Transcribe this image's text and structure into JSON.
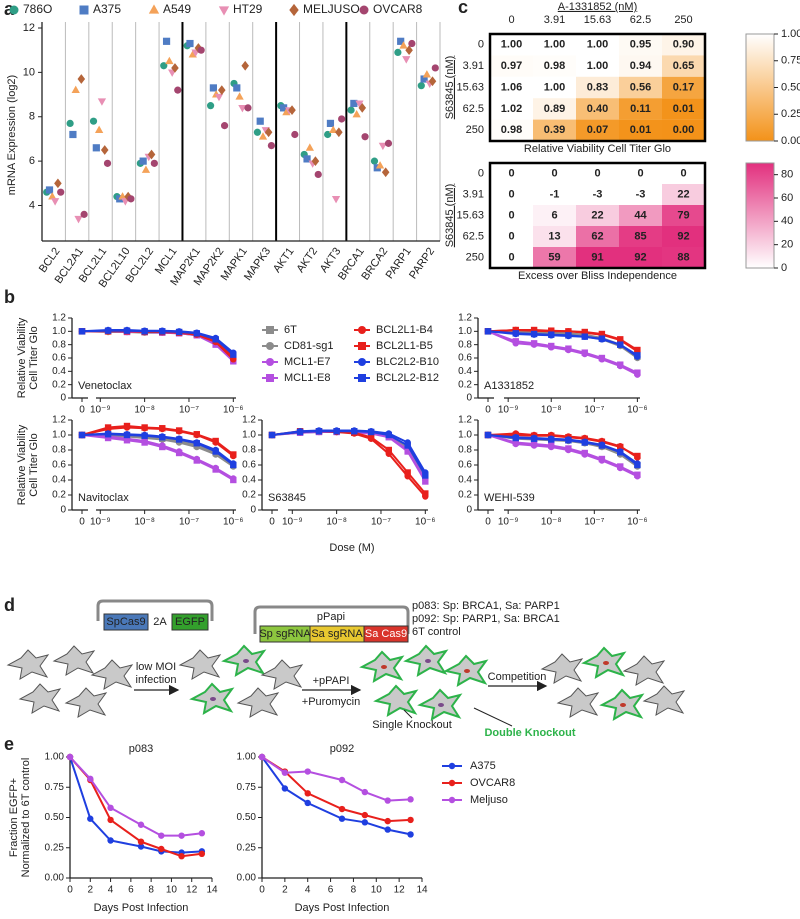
{
  "panel_labels": [
    "a",
    "b",
    "c",
    "d",
    "e"
  ],
  "chart_data": [
    {
      "type": "strip",
      "ylabel": "mRNA Expression (log2)",
      "categories": [
        "BCL2",
        "BCL2A1",
        "BCL2L1",
        "BCL2L10",
        "BCL2L2",
        "MCL1",
        "MAP2K1",
        "MAP2K2",
        "MAPK1",
        "MAPK3",
        "AKT1",
        "AKT2",
        "AKT3",
        "BRCA1",
        "BRCA2",
        "PARP1",
        "PARP2"
      ],
      "groups": [
        6,
        4,
        3,
        4
      ],
      "ylim": [
        2.4,
        12
      ],
      "yticks": [
        4,
        6,
        8,
        10,
        12
      ],
      "series": [
        {
          "name": "786O",
          "color": "#2f9e86",
          "marker": "circle",
          "values": [
            4.6,
            7.7,
            7.8,
            4.4,
            5.9,
            10.3,
            11.2,
            8.5,
            9.5,
            7.3,
            8.5,
            6.3,
            7.2,
            8.3,
            6.0,
            10.9,
            9.4
          ]
        },
        {
          "name": "A375",
          "color": "#4f7cc4",
          "marker": "square",
          "values": [
            4.7,
            7.2,
            6.6,
            4.3,
            6.0,
            11.4,
            11.3,
            9.3,
            9.3,
            7.8,
            8.4,
            6.1,
            7.7,
            8.6,
            5.7,
            11.4,
            9.7
          ]
        },
        {
          "name": "A549",
          "color": "#f4a259",
          "marker": "triangle",
          "values": [
            4.4,
            9.2,
            7.4,
            4.4,
            5.6,
            10.5,
            10.8,
            9.0,
            8.9,
            7.1,
            8.2,
            6.6,
            7.4,
            8.1,
            5.8,
            11.2,
            9.9
          ]
        },
        {
          "name": "HT29",
          "color": "#e88fb4",
          "marker": "triangle-down",
          "values": [
            4.2,
            3.4,
            8.7,
            4.2,
            6.2,
            10.0,
            10.9,
            8.9,
            8.4,
            7.4,
            8.3,
            5.9,
            4.3,
            8.6,
            6.7,
            10.6,
            9.5
          ]
        },
        {
          "name": "MELJUSO",
          "color": "#b5653a",
          "marker": "diamond",
          "values": [
            5.0,
            9.7,
            6.5,
            4.4,
            6.3,
            10.2,
            11.1,
            9.2,
            10.3,
            7.3,
            8.3,
            6.0,
            7.3,
            8.4,
            5.5,
            11.0,
            9.6
          ]
        },
        {
          "name": "OVCAR8",
          "color": "#a4456f",
          "marker": "circle",
          "values": [
            4.6,
            3.6,
            5.9,
            4.3,
            5.9,
            9.2,
            11.0,
            7.6,
            8.4,
            6.7,
            7.2,
            5.4,
            7.9,
            7.1,
            6.8,
            11.3,
            10.2
          ]
        }
      ]
    },
    {
      "type": "heatmap",
      "title": "A-1331852 (nM)",
      "ylabel": "S63845 (nM)",
      "caption": "Relative Viability Cell Titer Glo",
      "x": [
        0,
        3.91,
        15.63,
        62.5,
        250
      ],
      "y": [
        0,
        3.91,
        15.63,
        62.5,
        250
      ],
      "values": [
        [
          1,
          1,
          1,
          0.95,
          0.9
        ],
        [
          0.97,
          0.98,
          1,
          0.94,
          0.65
        ],
        [
          1.06,
          1,
          0.83,
          0.56,
          0.17
        ],
        [
          1.02,
          0.89,
          0.4,
          0.11,
          0.01
        ],
        [
          0.98,
          0.39,
          0.07,
          0.01,
          0
        ]
      ],
      "value_labels": [
        [
          "1.00",
          "1.00",
          "1.00",
          "0.95",
          "0.90"
        ],
        [
          "0.97",
          "0.98",
          "1.00",
          "0.94",
          "0.65"
        ],
        [
          "1.06",
          "1.00",
          "0.83",
          "0.56",
          "0.17"
        ],
        [
          "1.02",
          "0.89",
          "0.40",
          "0.11",
          "0.01"
        ],
        [
          "0.98",
          "0.39",
          "0.07",
          "0.01",
          "0.00"
        ]
      ],
      "colors": [
        "#f39219",
        "#ffffff"
      ],
      "zlim": [
        0,
        1
      ],
      "zticks": [
        {
          "value": 0,
          "label": "0.00"
        },
        {
          "value": 0.25,
          "label": "0.25"
        },
        {
          "value": 0.5,
          "label": "0.50"
        },
        {
          "value": 0.75,
          "label": "0.75"
        },
        {
          "value": 1,
          "label": "1.00"
        }
      ]
    },
    {
      "type": "heatmap",
      "ylabel": "S63845 (nM)",
      "caption": "Excess over Bliss Independence",
      "y": [
        0,
        3.91,
        15.63,
        62.5,
        250
      ],
      "values": [
        [
          0,
          0,
          0,
          0,
          0
        ],
        [
          0,
          -1,
          -3,
          -3,
          22
        ],
        [
          0,
          6,
          22,
          44,
          79
        ],
        [
          0,
          13,
          62,
          85,
          92
        ],
        [
          0,
          59,
          91,
          92,
          88
        ]
      ],
      "colors": [
        "#ffffff",
        "#e2307e"
      ],
      "zlim": [
        0,
        90
      ],
      "zticks": [
        0,
        20,
        40,
        60,
        80
      ]
    },
    {
      "type": "dose-response",
      "ylabel": [
        "Relative Viability",
        "Cell Titer Glo"
      ],
      "xlabel": "Dose (M)",
      "log_x": true,
      "x": [
        0,
        1.5e-09,
        4e-09,
        1e-08,
        2.5e-08,
        6e-08,
        1.5e-07,
        4e-07,
        1e-06
      ],
      "xlim": [
        8e-10,
        1.15e-06
      ],
      "xticks": [
        0,
        {
          "value": 1e-09,
          "label": "10⁻⁹"
        },
        {
          "value": 1e-08,
          "label": "10⁻⁸"
        },
        {
          "value": 1e-07,
          "label": "10⁻⁷"
        },
        {
          "value": 1e-06,
          "label": "10⁻⁶"
        }
      ],
      "ylim": [
        0,
        1.2
      ],
      "yticks": [
        0,
        0.2,
        0.4,
        0.6,
        0.8,
        {
          "value": 1,
          "label": "1.0"
        },
        1.2
      ],
      "series": [
        {
          "name": "6T",
          "color": "#8c8c8c",
          "marker": "square"
        },
        {
          "name": "CD81-sg1",
          "color": "#8c8c8c",
          "marker": "circle"
        },
        {
          "name": "MCL1-E7",
          "color": "#b44fe0",
          "marker": "circle"
        },
        {
          "name": "MCL1-E8",
          "color": "#b44fe0",
          "marker": "square"
        },
        {
          "name": "BCL2L1-B4",
          "color": "#e8201c",
          "marker": "circle"
        },
        {
          "name": "BCL2L1-B5",
          "color": "#e8201c",
          "marker": "square"
        },
        {
          "name": "BLC2L2-B10",
          "color": "#1f3fe0",
          "marker": "circle"
        },
        {
          "name": "BCL2L2-B12",
          "color": "#1f3fe0",
          "marker": "square"
        }
      ],
      "panels": [
        {
          "title": "Venetoclax",
          "values": [
            [
              1,
              1,
              1,
              0.99,
              0.99,
              0.98,
              0.95,
              0.85,
              0.62
            ],
            [
              1,
              0.99,
              0.99,
              0.98,
              0.98,
              0.97,
              0.94,
              0.83,
              0.6
            ],
            [
              1,
              1,
              1,
              1,
              0.99,
              0.98,
              0.95,
              0.82,
              0.56
            ],
            [
              1,
              1,
              0.99,
              0.99,
              0.98,
              0.97,
              0.94,
              0.8,
              0.55
            ],
            [
              1,
              1.01,
              1,
              1,
              0.99,
              0.98,
              0.95,
              0.84,
              0.58
            ],
            [
              1,
              1,
              1,
              0.99,
              0.99,
              0.98,
              0.96,
              0.86,
              0.62
            ],
            [
              1,
              1.02,
              1.02,
              1.01,
              1.01,
              1,
              0.98,
              0.9,
              0.68
            ],
            [
              1,
              1.01,
              1.01,
              1,
              1,
              0.99,
              0.97,
              0.88,
              0.65
            ]
          ]
        },
        {
          "title": "A1331852",
          "values": [
            [
              1,
              1,
              0.99,
              0.98,
              0.97,
              0.95,
              0.9,
              0.8,
              0.62
            ],
            [
              1,
              0.98,
              0.97,
              0.96,
              0.95,
              0.93,
              0.88,
              0.78,
              0.6
            ],
            [
              1,
              0.82,
              0.8,
              0.76,
              0.72,
              0.66,
              0.58,
              0.48,
              0.35
            ],
            [
              1,
              0.85,
              0.82,
              0.78,
              0.74,
              0.68,
              0.6,
              0.5,
              0.38
            ],
            [
              1,
              1.02,
              1.01,
              1,
              1,
              0.98,
              0.95,
              0.87,
              0.7
            ],
            [
              1,
              1.02,
              1.02,
              1.01,
              1,
              0.99,
              0.96,
              0.88,
              0.72
            ],
            [
              1,
              0.96,
              0.95,
              0.94,
              0.93,
              0.92,
              0.88,
              0.8,
              0.62
            ],
            [
              1,
              0.97,
              0.96,
              0.95,
              0.94,
              0.92,
              0.89,
              0.8,
              0.64
            ]
          ]
        },
        {
          "title": "Navitoclax",
          "values": [
            [
              1,
              1,
              0.99,
              0.97,
              0.95,
              0.92,
              0.86,
              0.76,
              0.6
            ],
            [
              1,
              0.99,
              0.98,
              0.96,
              0.94,
              0.9,
              0.84,
              0.74,
              0.58
            ],
            [
              1,
              0.98,
              0.95,
              0.92,
              0.86,
              0.78,
              0.68,
              0.56,
              0.42
            ],
            [
              1,
              0.96,
              0.93,
              0.9,
              0.84,
              0.76,
              0.66,
              0.54,
              0.4
            ],
            [
              1,
              1.08,
              1.1,
              1.09,
              1.08,
              1.05,
              1,
              0.9,
              0.72
            ],
            [
              1,
              1.1,
              1.12,
              1.1,
              1.09,
              1.06,
              1.01,
              0.92,
              0.74
            ],
            [
              1,
              1.02,
              1.01,
              1,
              0.98,
              0.95,
              0.9,
              0.8,
              0.62
            ],
            [
              1,
              1.01,
              1,
              0.99,
              0.97,
              0.94,
              0.89,
              0.78,
              0.6
            ]
          ]
        },
        {
          "title": "S63845",
          "values": [
            [
              1,
              1.04,
              1.05,
              1.05,
              1.05,
              1.04,
              1,
              0.85,
              0.45
            ],
            [
              1,
              1.03,
              1.04,
              1.04,
              1.04,
              1.03,
              0.98,
              0.82,
              0.42
            ],
            [
              1,
              1.04,
              1.05,
              1.05,
              1.04,
              1.03,
              0.98,
              0.8,
              0.4
            ],
            [
              1,
              1.03,
              1.04,
              1.04,
              1.03,
              1.02,
              0.97,
              0.78,
              0.38
            ],
            [
              1,
              1.04,
              1.05,
              1.04,
              1.02,
              0.95,
              0.75,
              0.45,
              0.18
            ],
            [
              1,
              1.05,
              1.05,
              1.05,
              1.03,
              0.97,
              0.8,
              0.5,
              0.22
            ],
            [
              1,
              1.05,
              1.06,
              1.06,
              1.06,
              1.05,
              1.02,
              0.9,
              0.5
            ],
            [
              1,
              1.04,
              1.05,
              1.05,
              1.05,
              1.04,
              1,
              0.86,
              0.46
            ]
          ]
        },
        {
          "title": "WEHI-539",
          "values": [
            [
              1,
              0.96,
              0.95,
              0.94,
              0.93,
              0.9,
              0.85,
              0.76,
              0.6
            ],
            [
              1,
              0.95,
              0.94,
              0.93,
              0.92,
              0.89,
              0.84,
              0.74,
              0.58
            ],
            [
              1,
              0.88,
              0.86,
              0.84,
              0.8,
              0.74,
              0.66,
              0.56,
              0.45
            ],
            [
              1,
              0.9,
              0.88,
              0.86,
              0.82,
              0.76,
              0.68,
              0.58,
              0.47
            ],
            [
              1,
              1.02,
              1,
              1,
              0.98,
              0.96,
              0.92,
              0.85,
              0.7
            ],
            [
              1,
              1,
              0.99,
              0.99,
              0.97,
              0.95,
              0.91,
              0.84,
              0.72
            ],
            [
              1,
              0.97,
              0.96,
              0.95,
              0.94,
              0.91,
              0.87,
              0.78,
              0.62
            ],
            [
              1,
              0.96,
              0.95,
              0.94,
              0.93,
              0.9,
              0.86,
              0.77,
              0.6
            ]
          ]
        }
      ]
    },
    {
      "type": "line",
      "ylabel": [
        "Fraction EGFP+",
        "Normalized to 6T control"
      ],
      "xlabel": "Days Post Infection",
      "x": [
        0,
        2,
        4,
        7,
        9,
        11,
        13
      ],
      "xlim": [
        0,
        14
      ],
      "xticks": [
        0,
        2,
        4,
        6,
        8,
        10,
        12,
        14
      ],
      "ylim": [
        0,
        1
      ],
      "yticks": [
        {
          "value": 0,
          "label": "0.00"
        },
        {
          "value": 0.25,
          "label": "0.25"
        },
        {
          "value": 0.5,
          "label": "0.50"
        },
        {
          "value": 0.75,
          "label": "0.75"
        },
        {
          "value": 1,
          "label": "1.00"
        }
      ],
      "series": [
        {
          "name": "A375",
          "color": "#1f3fe0"
        },
        {
          "name": "OVCAR8",
          "color": "#e8201c"
        },
        {
          "name": "Meljuso",
          "color": "#b44fe0"
        }
      ],
      "panels": [
        {
          "title": "p083",
          "values": [
            [
              1,
              0.49,
              0.31,
              0.26,
              0.22,
              0.21,
              0.22
            ],
            [
              1,
              0.81,
              0.48,
              0.3,
              0.24,
              0.18,
              0.2
            ],
            [
              1,
              0.82,
              0.58,
              0.44,
              0.35,
              0.35,
              0.37
            ]
          ]
        },
        {
          "title": "p092",
          "values": [
            [
              1,
              0.74,
              0.62,
              0.49,
              0.46,
              0.4,
              0.36
            ],
            [
              1,
              0.88,
              0.7,
              0.57,
              0.52,
              0.47,
              0.48
            ],
            [
              1,
              0.87,
              0.88,
              0.81,
              0.71,
              0.64,
              0.65
            ]
          ]
        }
      ]
    }
  ],
  "diagram": {
    "plasmid1": [
      "SpCas9",
      "2A",
      "EGFP"
    ],
    "plasmid2": {
      "name": "pPapi",
      "parts": [
        "Sp sgRNA",
        "Sa sgRNA",
        "Sa Cas9"
      ]
    },
    "constructs": [
      "p083: Sp: BRCA1, Sa: PARP1",
      "p092: Sp: PARP1, Sa: BRCA1",
      "6T control"
    ],
    "steps": [
      [
        "low MOI",
        "infection"
      ],
      [
        "+pPAPI",
        "+Puromycin"
      ],
      [
        "Competition"
      ]
    ],
    "outcomes": [
      "Single Knockout",
      "Double Knockout"
    ]
  }
}
